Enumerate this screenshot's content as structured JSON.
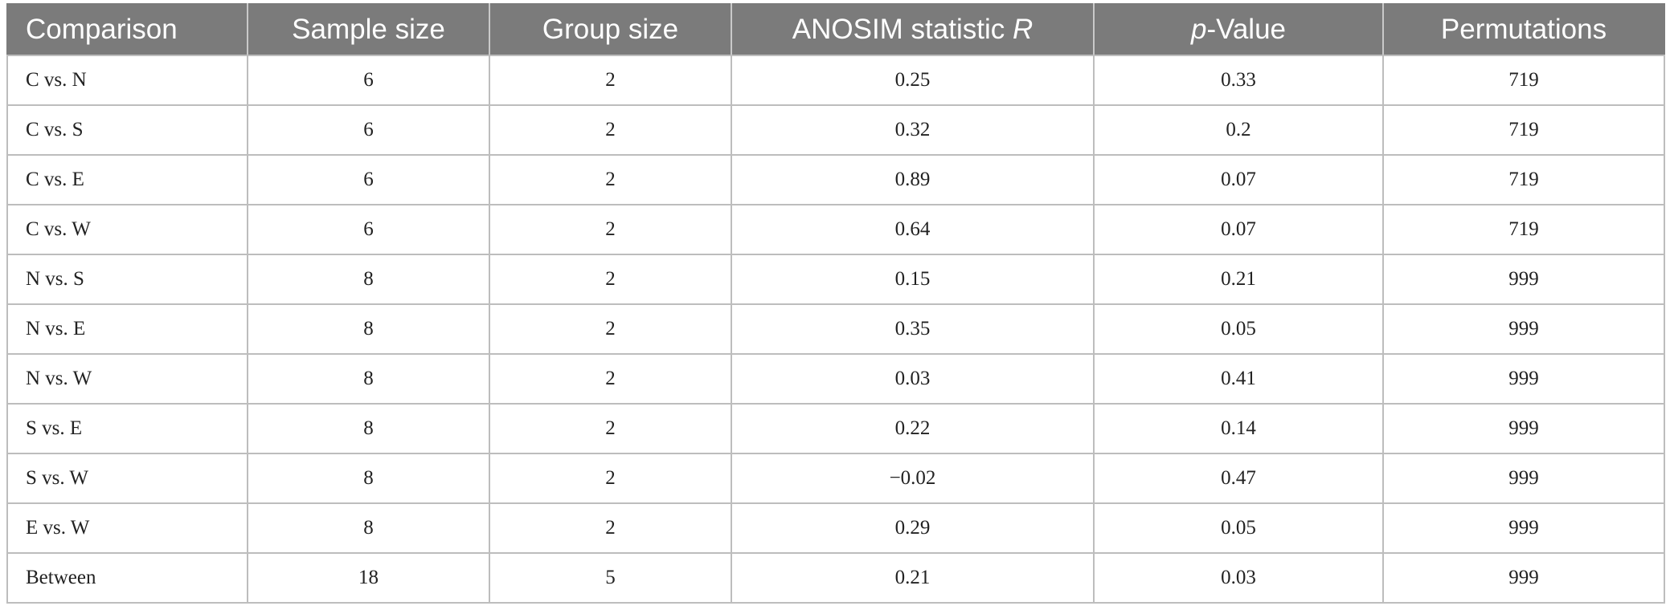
{
  "table": {
    "headers": [
      {
        "text": "Comparison",
        "italic": ""
      },
      {
        "text": "Sample size",
        "italic": ""
      },
      {
        "text": "Group size",
        "italic": ""
      },
      {
        "text": "ANOSIM statistic ",
        "italic": "R"
      },
      {
        "italic_prefix": "p",
        "text": "-Value"
      },
      {
        "text": "Permutations",
        "italic": ""
      }
    ],
    "rows": [
      {
        "comparison": "C vs. N",
        "sample_size": "6",
        "group_size": "2",
        "r": "0.25",
        "p": "0.33",
        "permutations": "719"
      },
      {
        "comparison": "C vs. S",
        "sample_size": "6",
        "group_size": "2",
        "r": "0.32",
        "p": "0.2",
        "permutations": "719"
      },
      {
        "comparison": "C vs. E",
        "sample_size": "6",
        "group_size": "2",
        "r": "0.89",
        "p": "0.07",
        "permutations": "719"
      },
      {
        "comparison": "C vs. W",
        "sample_size": "6",
        "group_size": "2",
        "r": "0.64",
        "p": "0.07",
        "permutations": "719"
      },
      {
        "comparison": "N vs. S",
        "sample_size": "8",
        "group_size": "2",
        "r": "0.15",
        "p": "0.21",
        "permutations": "999"
      },
      {
        "comparison": "N vs. E",
        "sample_size": "8",
        "group_size": "2",
        "r": "0.35",
        "p": "0.05",
        "permutations": "999"
      },
      {
        "comparison": "N vs. W",
        "sample_size": "8",
        "group_size": "2",
        "r": "0.03",
        "p": "0.41",
        "permutations": "999"
      },
      {
        "comparison": "S vs. E",
        "sample_size": "8",
        "group_size": "2",
        "r": "0.22",
        "p": "0.14",
        "permutations": "999"
      },
      {
        "comparison": "S vs. W",
        "sample_size": "8",
        "group_size": "2",
        "r": "−0.02",
        "p": "0.47",
        "permutations": "999"
      },
      {
        "comparison": "E vs. W",
        "sample_size": "8",
        "group_size": "2",
        "r": "0.29",
        "p": "0.05",
        "permutations": "999"
      },
      {
        "comparison": "Between",
        "sample_size": "18",
        "group_size": "5",
        "r": "0.21",
        "p": "0.03",
        "permutations": "999"
      }
    ]
  },
  "colors": {
    "header_background": "#7b7b7b",
    "header_text": "#ffffff",
    "grid_line": "#bdbdbd",
    "body_text": "#222222"
  }
}
